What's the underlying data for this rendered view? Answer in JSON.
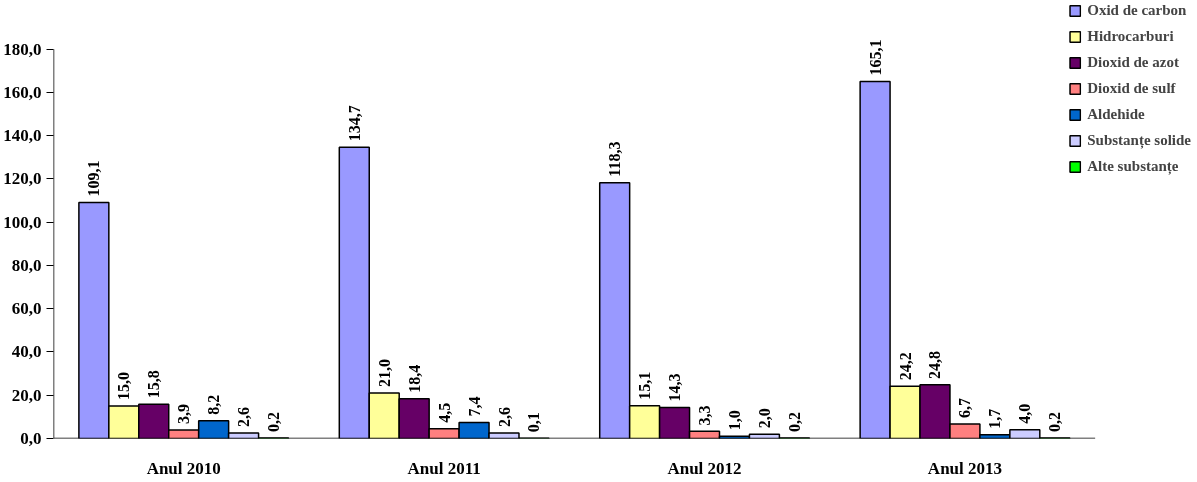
{
  "chart_data": {
    "type": "bar",
    "categories": [
      "Anul 2010",
      "Anul 2011",
      "Anul 2012",
      "Anul 2013"
    ],
    "series": [
      {
        "name": "Oxid de carbon",
        "color": "#9999ff",
        "values": [
          109.1,
          134.7,
          118.3,
          165.1
        ],
        "value_labels": [
          "109,1",
          "134,7",
          "118,3",
          "165,1"
        ]
      },
      {
        "name": "Hidrocarburi",
        "color": "#ffff99",
        "values": [
          15.0,
          21.0,
          15.1,
          24.2
        ],
        "value_labels": [
          "15,0",
          "21,0",
          "15,1",
          "24,2"
        ]
      },
      {
        "name": "Dioxid de azot",
        "color": "#660066",
        "values": [
          15.8,
          18.4,
          14.3,
          24.8
        ],
        "value_labels": [
          "15,8",
          "18,4",
          "14,3",
          "24,8"
        ]
      },
      {
        "name": "Dioxid de sulf",
        "color": "#ff8080",
        "values": [
          3.9,
          4.5,
          3.3,
          6.7
        ],
        "value_labels": [
          "3,9",
          "4,5",
          "3,3",
          "6,7"
        ]
      },
      {
        "name": "Aldehide",
        "color": "#0066cc",
        "values": [
          8.2,
          7.4,
          1.0,
          1.7
        ],
        "value_labels": [
          "8,2",
          "7,4",
          "1,0",
          "1,7"
        ]
      },
      {
        "name": "Substanțe solide",
        "color": "#ccccff",
        "values": [
          2.6,
          2.6,
          2.0,
          4.0
        ],
        "value_labels": [
          "2,6",
          "2,6",
          "2,0",
          "4,0"
        ]
      },
      {
        "name": "Alte substanțe",
        "color": "#00ff00",
        "values": [
          0.2,
          0.1,
          0.2,
          0.2
        ],
        "value_labels": [
          "0,2",
          "0,1",
          "0,2",
          "0,2"
        ]
      }
    ],
    "ylim": [
      0,
      180
    ],
    "yticks": [
      {
        "value": 0,
        "label": "0,0"
      },
      {
        "value": 20,
        "label": "20,0"
      },
      {
        "value": 40,
        "label": "40,0"
      },
      {
        "value": 60,
        "label": "60,0"
      },
      {
        "value": 80,
        "label": "80,0"
      },
      {
        "value": 100,
        "label": "100,0"
      },
      {
        "value": 120,
        "label": "120,0"
      },
      {
        "value": 140,
        "label": "140,0"
      },
      {
        "value": 160,
        "label": "160,0"
      },
      {
        "value": 180,
        "label": "180,0"
      }
    ],
    "grid": false,
    "legend": "top right"
  }
}
